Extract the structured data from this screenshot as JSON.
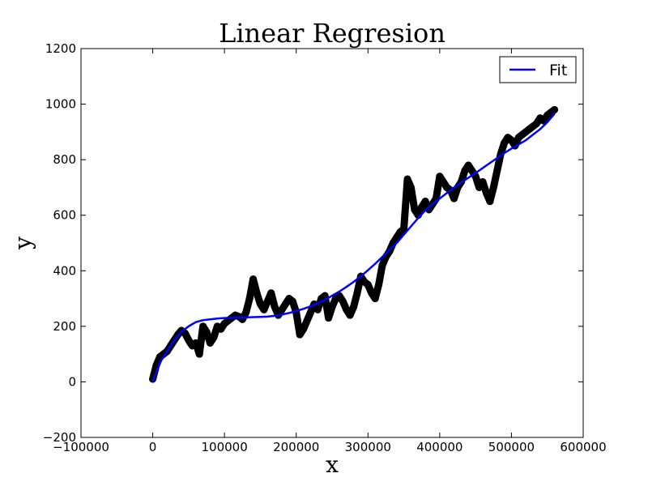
{
  "chart_data": {
    "type": "line",
    "title": "Linear Regresion",
    "xlabel": "x",
    "ylabel": "y",
    "xlim": [
      -100000,
      600000
    ],
    "ylim": [
      -200,
      1200
    ],
    "xticks": [
      -100000,
      0,
      100000,
      200000,
      300000,
      400000,
      500000,
      600000
    ],
    "yticks": [
      -200,
      0,
      200,
      400,
      600,
      800,
      1000,
      1200
    ],
    "xtick_labels": [
      "−100000",
      "0",
      "100000",
      "200000",
      "300000",
      "400000",
      "500000",
      "600000"
    ],
    "ytick_labels": [
      "−200",
      "0",
      "200",
      "400",
      "600",
      "800",
      "1000",
      "1200"
    ],
    "grid": false,
    "legend": {
      "position": "top-right",
      "entries": [
        "Fit"
      ]
    },
    "series": [
      {
        "name": "",
        "style": "markers",
        "color": "#000000",
        "x": [
          0,
          5000,
          10000,
          15000,
          20000,
          25000,
          30000,
          35000,
          40000,
          45000,
          50000,
          55000,
          60000,
          65000,
          70000,
          75000,
          80000,
          85000,
          90000,
          95000,
          100000,
          105000,
          110000,
          115000,
          120000,
          125000,
          130000,
          135000,
          140000,
          145000,
          150000,
          155000,
          160000,
          165000,
          170000,
          175000,
          180000,
          185000,
          190000,
          195000,
          200000,
          205000,
          210000,
          215000,
          220000,
          225000,
          230000,
          235000,
          240000,
          245000,
          250000,
          255000,
          260000,
          265000,
          270000,
          275000,
          280000,
          285000,
          290000,
          295000,
          300000,
          305000,
          310000,
          315000,
          320000,
          325000,
          330000,
          335000,
          340000,
          345000,
          350000,
          355000,
          360000,
          365000,
          370000,
          375000,
          380000,
          385000,
          390000,
          395000,
          400000,
          405000,
          410000,
          415000,
          420000,
          425000,
          430000,
          435000,
          440000,
          445000,
          450000,
          455000,
          460000,
          465000,
          470000,
          475000,
          480000,
          485000,
          490000,
          495000,
          500000,
          505000,
          510000,
          515000,
          520000,
          525000,
          530000,
          535000,
          540000,
          545000,
          550000,
          555000,
          560000
        ],
        "y": [
          10,
          60,
          90,
          100,
          110,
          130,
          150,
          170,
          185,
          175,
          150,
          130,
          140,
          100,
          200,
          180,
          140,
          160,
          200,
          190,
          210,
          220,
          230,
          240,
          235,
          225,
          250,
          300,
          370,
          320,
          280,
          260,
          290,
          320,
          270,
          240,
          260,
          280,
          300,
          290,
          250,
          170,
          190,
          220,
          250,
          280,
          260,
          300,
          310,
          230,
          270,
          300,
          310,
          290,
          260,
          240,
          270,
          320,
          380,
          360,
          350,
          320,
          300,
          350,
          420,
          450,
          470,
          500,
          520,
          540,
          550,
          730,
          700,
          620,
          600,
          630,
          650,
          620,
          640,
          660,
          740,
          720,
          700,
          690,
          660,
          700,
          720,
          760,
          780,
          760,
          740,
          700,
          720,
          680,
          650,
          700,
          760,
          820,
          860,
          880,
          870,
          850,
          880,
          890,
          900,
          910,
          920,
          930,
          950,
          940,
          960,
          970,
          980
        ]
      },
      {
        "name": "Fit",
        "style": "line",
        "color": "#0000ff",
        "x": [
          0,
          10000,
          20000,
          30000,
          40000,
          50000,
          60000,
          70000,
          80000,
          90000,
          100000,
          110000,
          120000,
          130000,
          140000,
          150000,
          160000,
          170000,
          180000,
          190000,
          200000,
          210000,
          220000,
          230000,
          240000,
          250000,
          260000,
          270000,
          280000,
          290000,
          300000,
          310000,
          320000,
          330000,
          340000,
          350000,
          360000,
          370000,
          380000,
          390000,
          400000,
          410000,
          420000,
          430000,
          440000,
          450000,
          460000,
          470000,
          480000,
          490000,
          500000,
          510000,
          520000,
          530000,
          540000,
          550000,
          560000
        ],
        "y": [
          0,
          70,
          110,
          150,
          180,
          200,
          215,
          222,
          225,
          228,
          230,
          231,
          232,
          232,
          233,
          234,
          235,
          238,
          242,
          248,
          255,
          263,
          272,
          283,
          295,
          310,
          325,
          342,
          360,
          380,
          402,
          425,
          450,
          476,
          500,
          530,
          560,
          590,
          618,
          640,
          660,
          680,
          700,
          718,
          735,
          752,
          770,
          788,
          806,
          824,
          840,
          855,
          870,
          890,
          910,
          935,
          965
        ]
      }
    ]
  }
}
